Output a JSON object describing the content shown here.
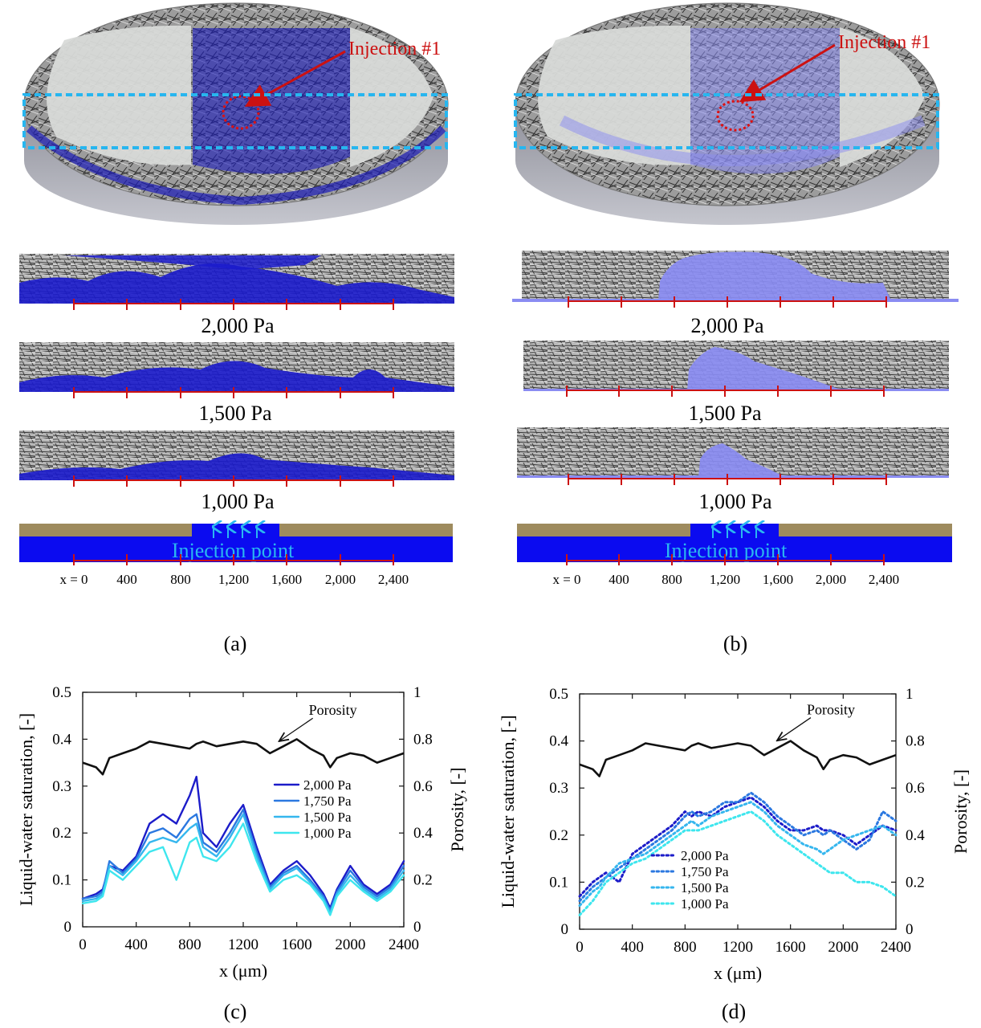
{
  "panel_a": {
    "injection_label": "Injection #1",
    "pressures": [
      "2,000 Pa",
      "1,500 Pa",
      "1,000 Pa"
    ],
    "injection_point": "Injection point",
    "x_ticks": [
      "x = 0",
      "400",
      "800",
      "1,200",
      "1,600",
      "2,000",
      "2,400"
    ],
    "caption": "(a)"
  },
  "panel_b": {
    "injection_label": "Injection #1",
    "pressures": [
      "2,000 Pa",
      "1,500 Pa",
      "1,000 Pa"
    ],
    "injection_point": "Injection point",
    "x_ticks": [
      "x = 0",
      "400",
      "800",
      "1,200",
      "1,600",
      "2,000",
      "2,400"
    ],
    "caption": "(b)"
  },
  "colors": {
    "water_dark": "#1a1ad6",
    "water_light": "#8a8cf2",
    "arrow_red": "#cc1111",
    "dashed_box": "#27b6ef",
    "injection_text": "#2ab7f0",
    "gdl_gray": "#9a9a9a",
    "plate_tan": "#9e8b5e",
    "series": [
      "#1c1cc9",
      "#2b78e0",
      "#35b6ee",
      "#3ee6ee"
    ]
  },
  "chart_data": [
    {
      "type": "line",
      "caption": "(c)",
      "xlabel": "x (μm)",
      "ylabel": "Liquid-water saturation, [-]",
      "y2label": "Porosity, [-]",
      "xlim": [
        0,
        2400
      ],
      "ylim": [
        0,
        0.5
      ],
      "y2lim": [
        0,
        1
      ],
      "x_ticks": [
        "0",
        "400",
        "800",
        "1200",
        "1600",
        "2000",
        "2400"
      ],
      "y_ticks": [
        "0",
        "0.1",
        "0.2",
        "0.3",
        "0.4",
        "0.5"
      ],
      "y2_ticks": [
        "0",
        "0.2",
        "0.4",
        "0.6",
        "0.8",
        "1"
      ],
      "annotation": "Porosity",
      "annotation_target": {
        "x": 1450,
        "y2": 0.78
      },
      "line_style": "solid",
      "x": [
        0,
        100,
        150,
        200,
        300,
        400,
        500,
        600,
        700,
        800,
        850,
        900,
        1000,
        1100,
        1200,
        1300,
        1400,
        1500,
        1600,
        1700,
        1800,
        1850,
        1900,
        2000,
        2100,
        2200,
        2300,
        2400
      ],
      "porosity": {
        "name": "Porosity",
        "axis": "right",
        "values": [
          0.7,
          0.68,
          0.65,
          0.72,
          0.74,
          0.76,
          0.79,
          0.78,
          0.77,
          0.76,
          0.78,
          0.79,
          0.77,
          0.78,
          0.79,
          0.78,
          0.74,
          0.77,
          0.8,
          0.76,
          0.73,
          0.68,
          0.72,
          0.74,
          0.73,
          0.7,
          0.72,
          0.74
        ]
      },
      "series": [
        {
          "name": "2,000 Pa",
          "values": [
            0.06,
            0.07,
            0.08,
            0.13,
            0.12,
            0.15,
            0.22,
            0.24,
            0.22,
            0.28,
            0.32,
            0.2,
            0.17,
            0.22,
            0.26,
            0.17,
            0.09,
            0.12,
            0.14,
            0.11,
            0.07,
            0.04,
            0.08,
            0.13,
            0.09,
            0.07,
            0.09,
            0.14
          ]
        },
        {
          "name": "1,750 Pa",
          "values": [
            0.06,
            0.065,
            0.075,
            0.14,
            0.115,
            0.145,
            0.2,
            0.21,
            0.19,
            0.23,
            0.24,
            0.18,
            0.16,
            0.2,
            0.25,
            0.16,
            0.085,
            0.115,
            0.13,
            0.1,
            0.065,
            0.035,
            0.075,
            0.12,
            0.085,
            0.065,
            0.085,
            0.13
          ]
        },
        {
          "name": "1,500 Pa",
          "values": [
            0.055,
            0.06,
            0.07,
            0.13,
            0.11,
            0.14,
            0.18,
            0.19,
            0.18,
            0.21,
            0.22,
            0.17,
            0.15,
            0.19,
            0.24,
            0.15,
            0.08,
            0.11,
            0.125,
            0.095,
            0.06,
            0.03,
            0.07,
            0.11,
            0.08,
            0.06,
            0.08,
            0.12
          ]
        },
        {
          "name": "1,000 Pa",
          "values": [
            0.05,
            0.055,
            0.065,
            0.12,
            0.1,
            0.13,
            0.16,
            0.17,
            0.1,
            0.18,
            0.19,
            0.15,
            0.14,
            0.17,
            0.22,
            0.14,
            0.075,
            0.1,
            0.11,
            0.09,
            0.055,
            0.025,
            0.065,
            0.1,
            0.075,
            0.055,
            0.075,
            0.11
          ]
        }
      ]
    },
    {
      "type": "line",
      "caption": "(d)",
      "xlabel": "x (μm)",
      "ylabel": "Liquid-water saturation, [-]",
      "y2label": "Porosity, [-]",
      "xlim": [
        0,
        2400
      ],
      "ylim": [
        0,
        0.5
      ],
      "y2lim": [
        0,
        1
      ],
      "x_ticks": [
        "0",
        "400",
        "800",
        "1200",
        "1600",
        "2000",
        "2400"
      ],
      "y_ticks": [
        "0",
        "0.1",
        "0.2",
        "0.3",
        "0.4",
        "0.5"
      ],
      "y2_ticks": [
        "0",
        "0.2",
        "0.4",
        "0.6",
        "0.8",
        "1"
      ],
      "annotation": "Porosity",
      "annotation_target": {
        "x": 1480,
        "y2": 0.79
      },
      "line_style": "dotted",
      "x": [
        0,
        100,
        150,
        200,
        300,
        400,
        500,
        600,
        700,
        800,
        850,
        900,
        1000,
        1100,
        1200,
        1300,
        1400,
        1500,
        1600,
        1700,
        1800,
        1850,
        1900,
        2000,
        2100,
        2200,
        2300,
        2400
      ],
      "porosity": {
        "name": "Porosity",
        "axis": "right",
        "values": [
          0.7,
          0.68,
          0.65,
          0.72,
          0.74,
          0.76,
          0.79,
          0.78,
          0.77,
          0.76,
          0.78,
          0.79,
          0.77,
          0.78,
          0.79,
          0.78,
          0.74,
          0.77,
          0.8,
          0.76,
          0.73,
          0.68,
          0.72,
          0.74,
          0.73,
          0.7,
          0.72,
          0.74
        ]
      },
      "series": [
        {
          "name": "2,000 Pa",
          "values": [
            0.07,
            0.1,
            0.11,
            0.12,
            0.1,
            0.16,
            0.18,
            0.2,
            0.22,
            0.25,
            0.24,
            0.25,
            0.24,
            0.26,
            0.27,
            0.28,
            0.26,
            0.23,
            0.21,
            0.21,
            0.22,
            0.21,
            0.21,
            0.2,
            0.18,
            0.2,
            0.22,
            0.21
          ]
        },
        {
          "name": "1,750 Pa",
          "values": [
            0.06,
            0.09,
            0.1,
            0.11,
            0.13,
            0.15,
            0.17,
            0.19,
            0.21,
            0.24,
            0.25,
            0.24,
            0.25,
            0.27,
            0.27,
            0.29,
            0.27,
            0.24,
            0.22,
            0.2,
            0.21,
            0.2,
            0.21,
            0.19,
            0.17,
            0.19,
            0.25,
            0.23
          ]
        },
        {
          "name": "1,500 Pa",
          "values": [
            0.05,
            0.08,
            0.09,
            0.11,
            0.14,
            0.15,
            0.16,
            0.18,
            0.2,
            0.22,
            0.23,
            0.22,
            0.24,
            0.25,
            0.26,
            0.27,
            0.25,
            0.22,
            0.2,
            0.18,
            0.17,
            0.16,
            0.17,
            0.19,
            0.2,
            0.21,
            0.22,
            0.2
          ]
        },
        {
          "name": "1,000 Pa",
          "values": [
            0.03,
            0.06,
            0.08,
            0.1,
            0.12,
            0.14,
            0.15,
            0.17,
            0.19,
            0.21,
            0.21,
            0.21,
            0.22,
            0.23,
            0.24,
            0.25,
            0.23,
            0.2,
            0.18,
            0.16,
            0.14,
            0.13,
            0.12,
            0.12,
            0.1,
            0.1,
            0.09,
            0.07
          ]
        }
      ]
    }
  ]
}
